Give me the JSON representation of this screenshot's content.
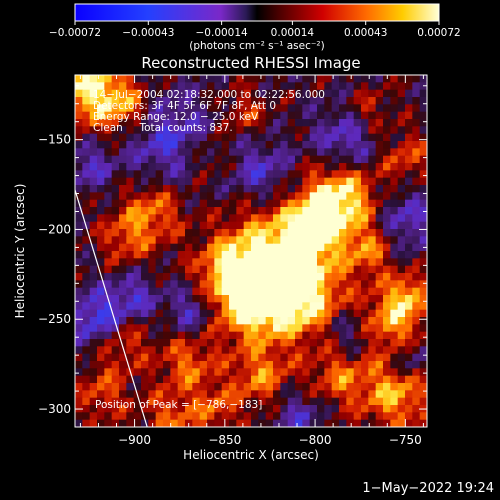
{
  "chart_data": {
    "type": "heatmap",
    "title": "Reconstructed RHESSI Image",
    "xlabel": "Heliocentric X (arcsec)",
    "ylabel": "Heliocentric Y (arcsec)",
    "x_ticks": [
      {
        "value": -900,
        "label": "−900"
      },
      {
        "value": -850,
        "label": "−850"
      },
      {
        "value": -800,
        "label": "−800"
      },
      {
        "value": -750,
        "label": "−750"
      }
    ],
    "y_ticks": [
      {
        "value": -150,
        "label": "−150"
      },
      {
        "value": -200,
        "label": "−200"
      },
      {
        "value": -250,
        "label": "−250"
      },
      {
        "value": -300,
        "label": "−300"
      }
    ],
    "xlim": [
      -933,
      -738
    ],
    "ylim": [
      -310,
      -114
    ],
    "colorbar": {
      "range": [
        -0.00072,
        0.00072
      ],
      "ticks": [
        {
          "value": -0.00072,
          "label": "−0.00072"
        },
        {
          "value": -0.00043,
          "label": "−0.00043"
        },
        {
          "value": -0.00014,
          "label": "−0.00014"
        },
        {
          "value": 0.00014,
          "label": "0.00014"
        },
        {
          "value": 0.00043,
          "label": "0.00043"
        },
        {
          "value": 0.00072,
          "label": "0.00072"
        }
      ],
      "unit_label": "(photons cm⁻² s⁻¹ asec⁻²)"
    },
    "annotations": [
      "14−Jul−2004 02:18:32.000 to 02:22:56.000",
      "Detectors: 3F 4F 5F 6F 7F 8F, Att 0",
      "Energy Range: 12.0 − 25.0 keV",
      "Clean     Total counts: 837."
    ],
    "peak_text": "Position of Peak = [−786,−183]",
    "peak_position": [
      -786,
      -183
    ],
    "limb_line": [
      [
        -933,
        -178
      ],
      [
        -893,
        -310
      ]
    ],
    "blobs": [
      {
        "x": -820,
        "y": -215,
        "r": 20,
        "v": 1.0
      },
      {
        "x": -810,
        "y": -238,
        "r": 16,
        "v": 0.9
      },
      {
        "x": -838,
        "y": -242,
        "r": 14,
        "v": 0.8
      },
      {
        "x": -848,
        "y": -222,
        "r": 12,
        "v": 0.65
      },
      {
        "x": -786,
        "y": -183,
        "r": 14,
        "v": 1.0
      },
      {
        "x": -800,
        "y": -198,
        "r": 10,
        "v": 0.7
      },
      {
        "x": -770,
        "y": -212,
        "r": 10,
        "v": 0.55
      },
      {
        "x": -890,
        "y": -190,
        "r": 12,
        "v": 0.6
      },
      {
        "x": -905,
        "y": -205,
        "r": 10,
        "v": 0.45
      },
      {
        "x": -925,
        "y": -122,
        "r": 14,
        "v": 0.95
      },
      {
        "x": -905,
        "y": -132,
        "r": 10,
        "v": 0.55
      },
      {
        "x": -860,
        "y": -160,
        "r": 9,
        "v": 0.4
      },
      {
        "x": -758,
        "y": -252,
        "r": 13,
        "v": 0.75
      },
      {
        "x": -748,
        "y": -236,
        "r": 8,
        "v": 0.6
      },
      {
        "x": -755,
        "y": -292,
        "r": 13,
        "v": 0.75
      },
      {
        "x": -786,
        "y": -282,
        "r": 12,
        "v": 0.55
      },
      {
        "x": -830,
        "y": -282,
        "r": 12,
        "v": 0.6
      },
      {
        "x": -870,
        "y": -275,
        "r": 11,
        "v": 0.55
      },
      {
        "x": -908,
        "y": -262,
        "r": 12,
        "v": 0.5
      },
      {
        "x": -918,
        "y": -292,
        "r": 10,
        "v": 0.45
      },
      {
        "x": -880,
        "y": -305,
        "r": 11,
        "v": 0.5
      },
      {
        "x": -855,
        "y": -300,
        "r": 9,
        "v": 0.45
      },
      {
        "x": -750,
        "y": -160,
        "r": 10,
        "v": 0.45
      },
      {
        "x": -840,
        "y": -135,
        "r": 9,
        "v": 0.4
      },
      {
        "x": -770,
        "y": -135,
        "r": 9,
        "v": 0.4
      },
      {
        "x": -880,
        "y": -150,
        "r": 18,
        "v": -0.55
      },
      {
        "x": -830,
        "y": -168,
        "r": 12,
        "v": -0.5
      },
      {
        "x": -782,
        "y": -150,
        "r": 13,
        "v": -0.55
      },
      {
        "x": -750,
        "y": -195,
        "r": 12,
        "v": -0.5
      },
      {
        "x": -920,
        "y": -250,
        "r": 11,
        "v": -0.8
      },
      {
        "x": -900,
        "y": -238,
        "r": 9,
        "v": -0.5
      },
      {
        "x": -868,
        "y": -245,
        "r": 9,
        "v": -0.5
      },
      {
        "x": -780,
        "y": -258,
        "r": 10,
        "v": -0.45
      },
      {
        "x": -810,
        "y": -303,
        "r": 10,
        "v": -0.45
      },
      {
        "x": -748,
        "y": -272,
        "r": 8,
        "v": -0.5
      },
      {
        "x": -925,
        "y": -165,
        "r": 9,
        "v": -0.45
      }
    ]
  },
  "date_stamp": "1−May−2022 19:24"
}
